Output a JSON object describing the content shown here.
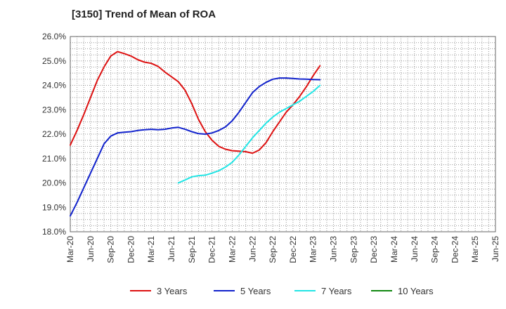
{
  "chart_data": {
    "type": "line",
    "title": "[3150]  Trend of Mean of ROA",
    "xlabel": "",
    "ylabel": "",
    "ylim": [
      18.0,
      26.0
    ],
    "y_ticks": [
      "18.0%",
      "19.0%",
      "20.0%",
      "21.0%",
      "22.0%",
      "23.0%",
      "24.0%",
      "25.0%",
      "26.0%"
    ],
    "x_ticks": [
      "Mar-20",
      "Jun-20",
      "Sep-20",
      "Dec-20",
      "Mar-21",
      "Jun-21",
      "Sep-21",
      "Dec-21",
      "Mar-22",
      "Jun-22",
      "Sep-22",
      "Dec-22",
      "Mar-23",
      "Jun-23",
      "Sep-23",
      "Dec-23",
      "Mar-24",
      "Jun-24",
      "Sep-24",
      "Dec-24",
      "Mar-25",
      "Jun-25"
    ],
    "grid": true,
    "legend_position": "bottom",
    "series": [
      {
        "name": "3 Years",
        "color": "#dd1111",
        "values": [
          [
            0,
            21.55
          ],
          [
            1,
            22.15
          ],
          [
            2,
            22.8
          ],
          [
            3,
            23.5
          ],
          [
            4,
            24.2
          ],
          [
            5,
            24.75
          ],
          [
            6,
            25.2
          ],
          [
            7,
            25.38
          ],
          [
            8,
            25.3
          ],
          [
            9,
            25.2
          ],
          [
            10,
            25.05
          ],
          [
            11,
            24.95
          ],
          [
            12,
            24.9
          ],
          [
            13,
            24.78
          ],
          [
            14,
            24.55
          ],
          [
            15,
            24.35
          ],
          [
            16,
            24.15
          ],
          [
            17,
            23.8
          ],
          [
            18,
            23.25
          ],
          [
            19,
            22.6
          ],
          [
            20,
            22.1
          ],
          [
            21,
            21.75
          ],
          [
            22,
            21.5
          ],
          [
            23,
            21.38
          ],
          [
            24,
            21.32
          ],
          [
            25,
            21.3
          ],
          [
            26,
            21.28
          ],
          [
            27,
            21.22
          ],
          [
            28,
            21.35
          ],
          [
            29,
            21.65
          ],
          [
            30,
            22.1
          ],
          [
            31,
            22.5
          ],
          [
            32,
            22.9
          ],
          [
            33,
            23.2
          ],
          [
            34,
            23.55
          ],
          [
            35,
            23.95
          ],
          [
            36,
            24.4
          ],
          [
            37,
            24.8
          ]
        ]
      },
      {
        "name": "5 Years",
        "color": "#1122cc",
        "values": [
          [
            0,
            18.65
          ],
          [
            1,
            19.2
          ],
          [
            2,
            19.8
          ],
          [
            3,
            20.4
          ],
          [
            4,
            21.0
          ],
          [
            5,
            21.6
          ],
          [
            6,
            21.92
          ],
          [
            7,
            22.05
          ],
          [
            8,
            22.08
          ],
          [
            9,
            22.1
          ],
          [
            10,
            22.15
          ],
          [
            11,
            22.18
          ],
          [
            12,
            22.2
          ],
          [
            13,
            22.18
          ],
          [
            14,
            22.2
          ],
          [
            15,
            22.25
          ],
          [
            16,
            22.28
          ],
          [
            17,
            22.2
          ],
          [
            18,
            22.1
          ],
          [
            19,
            22.02
          ],
          [
            20,
            22.0
          ],
          [
            21,
            22.05
          ],
          [
            22,
            22.15
          ],
          [
            23,
            22.3
          ],
          [
            24,
            22.55
          ],
          [
            25,
            22.9
          ],
          [
            26,
            23.3
          ],
          [
            27,
            23.7
          ],
          [
            28,
            23.95
          ],
          [
            29,
            24.12
          ],
          [
            30,
            24.25
          ],
          [
            31,
            24.3
          ],
          [
            32,
            24.3
          ],
          [
            33,
            24.28
          ],
          [
            34,
            24.26
          ],
          [
            35,
            24.25
          ],
          [
            36,
            24.24
          ],
          [
            37,
            24.23
          ]
        ]
      },
      {
        "name": "7 Years",
        "color": "#22e5e5",
        "values": [
          [
            16,
            20.0
          ],
          [
            17,
            20.12
          ],
          [
            18,
            20.25
          ],
          [
            19,
            20.3
          ],
          [
            20,
            20.32
          ],
          [
            21,
            20.4
          ],
          [
            22,
            20.5
          ],
          [
            23,
            20.65
          ],
          [
            24,
            20.85
          ],
          [
            25,
            21.15
          ],
          [
            26,
            21.5
          ],
          [
            27,
            21.85
          ],
          [
            28,
            22.15
          ],
          [
            29,
            22.45
          ],
          [
            30,
            22.7
          ],
          [
            31,
            22.9
          ],
          [
            32,
            23.05
          ],
          [
            33,
            23.2
          ],
          [
            34,
            23.35
          ],
          [
            35,
            23.55
          ],
          [
            36,
            23.75
          ],
          [
            37,
            24.0
          ]
        ]
      },
      {
        "name": "10 Years",
        "color": "#118811",
        "values": []
      }
    ]
  }
}
